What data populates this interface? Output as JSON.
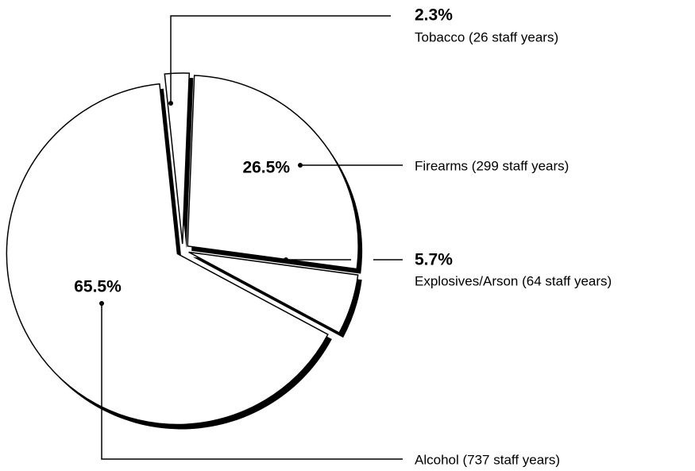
{
  "chart_data": {
    "type": "pie",
    "categories": [
      "Tobacco (26 staff years)",
      "Firearms (299 staff years)",
      "Explosives/Arson (64 staff years)",
      "Alcohol (737 staff years)"
    ],
    "values": [
      2.3,
      26.5,
      5.7,
      65.5
    ],
    "value_labels": [
      "2.3%",
      "26.5%",
      "5.7%",
      "65.5%"
    ],
    "color": "#ffffff"
  }
}
